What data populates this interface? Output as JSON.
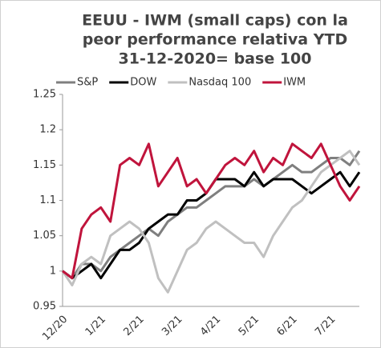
{
  "chart_data": {
    "type": "line",
    "title": [
      "EEUU - IWM (small caps) con la",
      "peor performance relativa YTD",
      "31-12-2020= base 100"
    ],
    "categories": [
      "12/20",
      null,
      null,
      null,
      "1/21",
      null,
      null,
      null,
      "2/21",
      null,
      null,
      null,
      "3/21",
      null,
      null,
      null,
      "4/21",
      null,
      null,
      null,
      "5/21",
      null,
      null,
      null,
      "6/21",
      null,
      null,
      null,
      "7/21",
      null,
      null,
      null
    ],
    "series": [
      {
        "name": "S&P",
        "color": "#7f7f7f",
        "values": [
          1.0,
          0.99,
          1.01,
          1.01,
          1.0,
          1.02,
          1.03,
          1.04,
          1.05,
          1.06,
          1.05,
          1.07,
          1.08,
          1.09,
          1.09,
          1.1,
          1.11,
          1.12,
          1.12,
          1.12,
          1.13,
          1.12,
          1.13,
          1.14,
          1.15,
          1.14,
          1.14,
          1.15,
          1.16,
          1.16,
          1.15,
          1.17
        ]
      },
      {
        "name": "DOW",
        "color": "#000000",
        "values": [
          1.0,
          0.99,
          1.0,
          1.01,
          0.99,
          1.01,
          1.03,
          1.03,
          1.04,
          1.06,
          1.07,
          1.08,
          1.08,
          1.1,
          1.1,
          1.11,
          1.13,
          1.13,
          1.13,
          1.12,
          1.14,
          1.12,
          1.13,
          1.13,
          1.13,
          1.12,
          1.11,
          1.12,
          1.13,
          1.14,
          1.12,
          1.14
        ]
      },
      {
        "name": "Nasdaq 100",
        "color": "#c0c0c0",
        "values": [
          1.0,
          0.98,
          1.01,
          1.02,
          1.01,
          1.05,
          1.06,
          1.07,
          1.06,
          1.04,
          0.99,
          0.97,
          1.0,
          1.03,
          1.04,
          1.06,
          1.07,
          1.06,
          1.05,
          1.04,
          1.04,
          1.02,
          1.05,
          1.07,
          1.09,
          1.1,
          1.12,
          1.14,
          1.15,
          1.16,
          1.17,
          1.15
        ]
      },
      {
        "name": "IWM",
        "color": "#c0143c",
        "values": [
          1.0,
          0.99,
          1.06,
          1.08,
          1.09,
          1.07,
          1.15,
          1.16,
          1.15,
          1.18,
          1.12,
          1.14,
          1.16,
          1.12,
          1.13,
          1.11,
          1.13,
          1.15,
          1.16,
          1.15,
          1.17,
          1.14,
          1.16,
          1.15,
          1.18,
          1.17,
          1.16,
          1.18,
          1.15,
          1.12,
          1.1,
          1.12
        ]
      }
    ],
    "ylim": [
      0.95,
      1.25
    ],
    "yticks": [
      0.95,
      1,
      1.05,
      1.1,
      1.15,
      1.2,
      1.25
    ],
    "legend": "top"
  }
}
